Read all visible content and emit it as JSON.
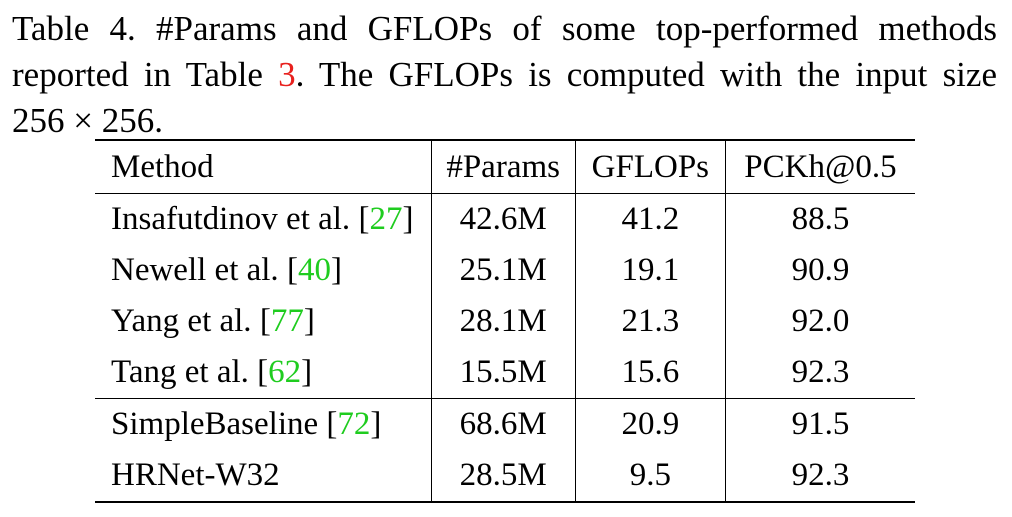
{
  "caption": {
    "line1": "Table 4. #Params and GFLOPs of some top-performed methods",
    "line2_before": "reported in Table ",
    "line2_ref": "3",
    "line2_after": ". The GFLOPs is computed with the input size",
    "line3": "256 × 256."
  },
  "table": {
    "headers": [
      "Method",
      "#Params",
      "GFLOPs",
      "PCKh@0.5"
    ],
    "rows": [
      {
        "method": "Insafutdinov et al. ",
        "ref": "27",
        "params": "42.6M",
        "gflops": "41.2",
        "pckh": "88.5"
      },
      {
        "method": "Newell et al. ",
        "ref": "40",
        "params": "25.1M",
        "gflops": "19.1",
        "pckh": "90.9"
      },
      {
        "method": "Yang et al. ",
        "ref": "77",
        "params": "28.1M",
        "gflops": "21.3",
        "pckh": "92.0"
      },
      {
        "method": "Tang et al. ",
        "ref": "62",
        "params": "15.5M",
        "gflops": "15.6",
        "pckh": "92.3"
      },
      {
        "method": "SimpleBaseline ",
        "ref": "72",
        "params": "68.6M",
        "gflops": "20.9",
        "pckh": "91.5"
      },
      {
        "method": "HRNet-W32",
        "ref": "",
        "params": "28.5M",
        "gflops": "9.5",
        "pckh": "92.3"
      }
    ]
  },
  "colors": {
    "citation_link": "#1fcc1f",
    "table_link": "#e8201d"
  }
}
